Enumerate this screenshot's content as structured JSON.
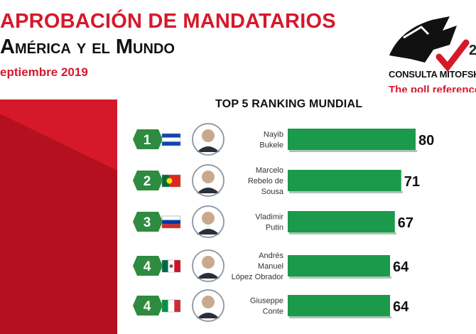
{
  "header": {
    "title_line1": "APROBACIÓN DE MANDATARIOS",
    "title_line2": "América y el Mundo",
    "date": "eptiembre 2019"
  },
  "logo": {
    "name": "CONSULTA MITOFSKY",
    "tagline": "The poll reference",
    "year_fragment": "2"
  },
  "colors": {
    "bar": "#1a9a4a",
    "brand_red": "#d5192b",
    "rank_badge": "#2e8b3f"
  },
  "chart_data": {
    "type": "bar",
    "orientation": "horizontal",
    "title": "TOP 5 RANKING MUNDIAL",
    "xlim": [
      0,
      80
    ],
    "items": [
      {
        "rank": "1",
        "country_flag": "el-salvador-flag",
        "name_lines": [
          "Nayib",
          "Bukele"
        ],
        "value": 80,
        "label": "80"
      },
      {
        "rank": "2",
        "country_flag": "portugal-flag",
        "name_lines": [
          "Marcelo",
          "Rebelo de",
          "Sousa"
        ],
        "value": 71,
        "label": "71"
      },
      {
        "rank": "3",
        "country_flag": "russia-flag",
        "name_lines": [
          "Vladimir",
          "Putin"
        ],
        "value": 67,
        "label": "67"
      },
      {
        "rank": "4",
        "country_flag": "mexico-flag",
        "name_lines": [
          "Andrés",
          "Manuel",
          "López Obrador"
        ],
        "value": 64,
        "label": "64"
      },
      {
        "rank": "4",
        "country_flag": "italy-flag",
        "name_lines": [
          "Giuseppe",
          "Conte"
        ],
        "value": 64,
        "label": "64"
      }
    ]
  }
}
